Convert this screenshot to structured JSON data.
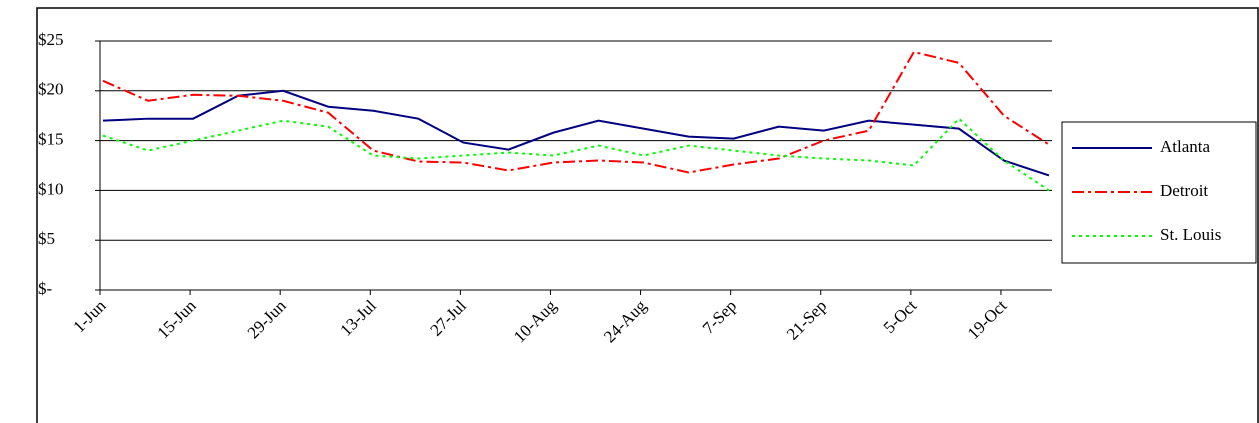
{
  "chart_data": {
    "type": "line",
    "categories": [
      "1-Jun",
      null,
      "15-Jun",
      null,
      "29-Jun",
      null,
      "13-Jul",
      null,
      "27-Jul",
      null,
      "10-Aug",
      null,
      "24-Aug",
      null,
      "7-Sep",
      null,
      "21-Sep",
      null,
      "5-Oct",
      null,
      "19-Oct",
      null
    ],
    "series": [
      {
        "name": "Atlanta",
        "color": "#000080",
        "dash": "solid",
        "values": [
          17,
          17.2,
          17.2,
          19.5,
          20,
          18.4,
          18,
          17.2,
          14.8,
          14.1,
          15.8,
          17,
          16.2,
          15.4,
          15.2,
          16.4,
          16,
          17,
          16.6,
          16.2,
          13,
          11.5
        ]
      },
      {
        "name": "Detroit",
        "color": "#ff0000",
        "dash": "dashdot",
        "values": [
          21,
          19,
          19.6,
          19.5,
          19,
          17.8,
          14,
          12.9,
          12.8,
          12,
          12.8,
          13,
          12.8,
          11.8,
          12.6,
          13.2,
          15,
          16,
          23.9,
          22.8,
          17.5,
          14.6
        ]
      },
      {
        "name": "St. Louis",
        "color": "#00ff00",
        "dash": "dot",
        "values": [
          15.5,
          14,
          15,
          16,
          17,
          16.4,
          13.5,
          13.2,
          13.5,
          13.8,
          13.5,
          14.5,
          13.5,
          14.5,
          14,
          13.5,
          13.2,
          13,
          12.5,
          17.2,
          13,
          10
        ]
      }
    ],
    "ylim": [
      0,
      25
    ],
    "yticks": [
      {
        "value": 0,
        "label": "$-"
      },
      {
        "value": 5,
        "label": "$5"
      },
      {
        "value": 10,
        "label": "$10"
      },
      {
        "value": 15,
        "label": "$15"
      },
      {
        "value": 20,
        "label": "$20"
      },
      {
        "value": 25,
        "label": "$25"
      }
    ],
    "grid": true,
    "legend": "right"
  }
}
